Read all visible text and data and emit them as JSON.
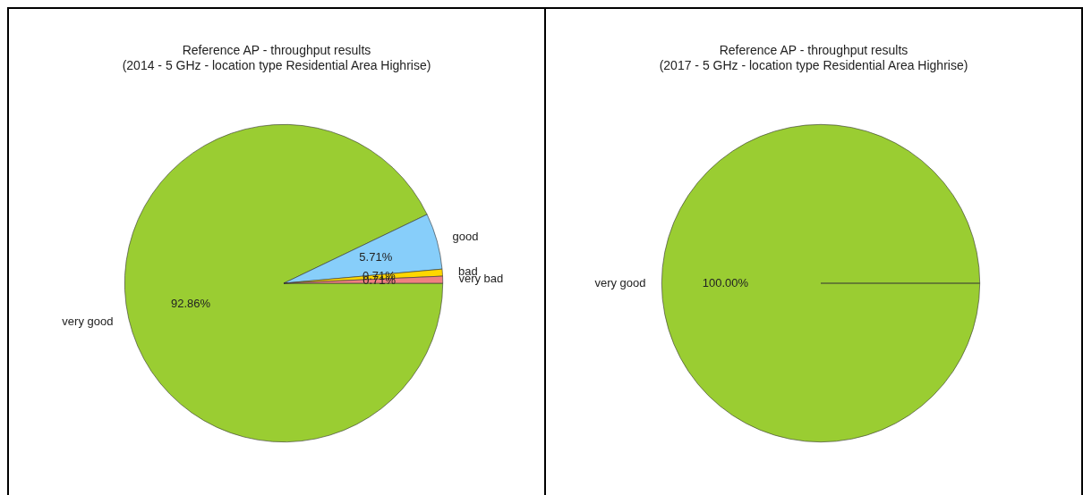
{
  "chart_data": [
    {
      "type": "pie",
      "title": "Reference AP - throughput results",
      "subtitle": "(2014 - 5 GHz - location type Residential Area Highrise)",
      "categories": [
        "very good",
        "good",
        "bad",
        "very bad"
      ],
      "values": [
        92.86,
        5.71,
        0.71,
        0.71
      ],
      "value_labels": [
        "92.86%",
        "5.71%",
        "0.71%",
        "0.71%"
      ],
      "colors": [
        "#9acd32",
        "#87cefa",
        "#ffd700",
        "#f08080"
      ]
    },
    {
      "type": "pie",
      "title": "Reference AP - throughput results",
      "subtitle": "(2017 - 5 GHz - location type Residential Area Highrise)",
      "categories": [
        "very good"
      ],
      "values": [
        100
      ],
      "value_labels": [
        "100.00%"
      ],
      "colors": [
        "#9acd32"
      ]
    }
  ]
}
